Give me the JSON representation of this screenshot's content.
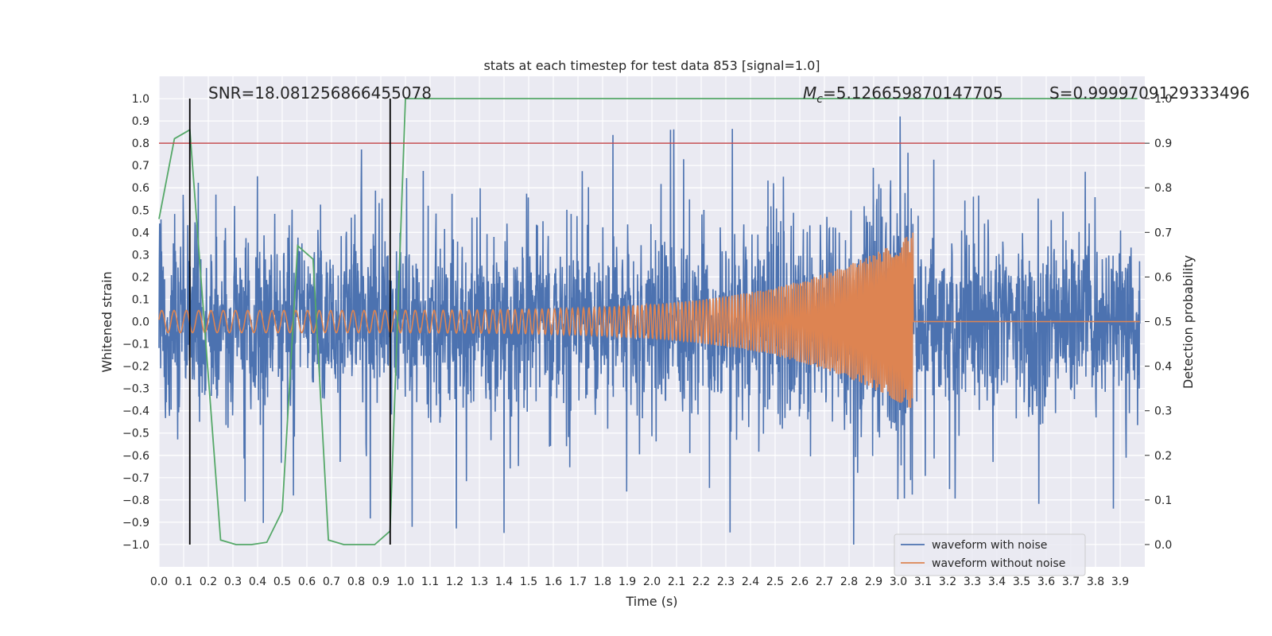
{
  "chart_data": {
    "type": "line",
    "title": "stats at each timestep for test data 853 [signal=1.0]",
    "xlabel": "Time (s)",
    "ylabel": "Whitened strain",
    "y2label": "Detection probability",
    "xlim": [
      0.0,
      4.0
    ],
    "ylim": [
      -1.1,
      1.1
    ],
    "y2lim": [
      -0.05,
      1.05
    ],
    "grid": true,
    "legend_position": "lower-right",
    "x_ticks": [
      "0.0",
      "0.1",
      "0.2",
      "0.3",
      "0.4",
      "0.5",
      "0.6",
      "0.7",
      "0.8",
      "0.9",
      "1.0",
      "1.1",
      "1.2",
      "1.3",
      "1.4",
      "1.5",
      "1.6",
      "1.7",
      "1.8",
      "1.9",
      "2.0",
      "2.1",
      "2.2",
      "2.3",
      "2.4",
      "2.5",
      "2.6",
      "2.7",
      "2.8",
      "2.9",
      "3.0",
      "3.1",
      "3.2",
      "3.3",
      "3.4",
      "3.5",
      "3.6",
      "3.7",
      "3.8",
      "3.9"
    ],
    "y_ticks": [
      "1.0",
      "0.9",
      "0.8",
      "0.7",
      "0.6",
      "0.5",
      "0.4",
      "0.3",
      "0.2",
      "0.1",
      "0.0",
      "−0.1",
      "−0.2",
      "−0.3",
      "−0.4",
      "−0.5",
      "−0.6",
      "−0.7",
      "−0.8",
      "−0.9",
      "−1.0"
    ],
    "y2_ticks": [
      "1.0",
      "0.9",
      "0.8",
      "0.7",
      "0.6",
      "0.5",
      "0.4",
      "0.3",
      "0.2",
      "0.1",
      "0.0"
    ],
    "annotations": {
      "snr": "SNR=18.081256866455078",
      "mc_symbol": "M",
      "mc_sub": "c",
      "mc_value": "=5.126659870147705",
      "s": "S=0.9999709129333496"
    },
    "series": [
      {
        "name": "waveform with noise",
        "color": "#4c72b0",
        "noise_std": 0.2,
        "noise_peak_max": 0.92,
        "noise_peak_min": -1.0
      },
      {
        "name": "waveform without noise",
        "color": "#dd8452",
        "amplitude_start": 0.05,
        "amplitude_end": 0.4,
        "merger_time": 3.06,
        "f_start": 20,
        "f_end": 160
      }
    ],
    "probability": {
      "color": "#55a868",
      "x": [
        0.0,
        0.0625,
        0.125,
        0.25,
        0.3125,
        0.375,
        0.4375,
        0.5,
        0.5625,
        0.625,
        0.6875,
        0.75,
        0.875,
        0.9375,
        1.0,
        3.97
      ],
      "y": [
        0.73,
        0.91,
        0.93,
        0.01,
        0.0,
        0.0,
        0.005,
        0.075,
        0.67,
        0.64,
        0.01,
        0.0,
        0.0,
        0.03,
        1.0,
        1.0
      ]
    },
    "threshold": {
      "value": 0.9,
      "color": "#c44e52"
    },
    "vertical_markers": [
      0.125,
      0.938
    ]
  }
}
